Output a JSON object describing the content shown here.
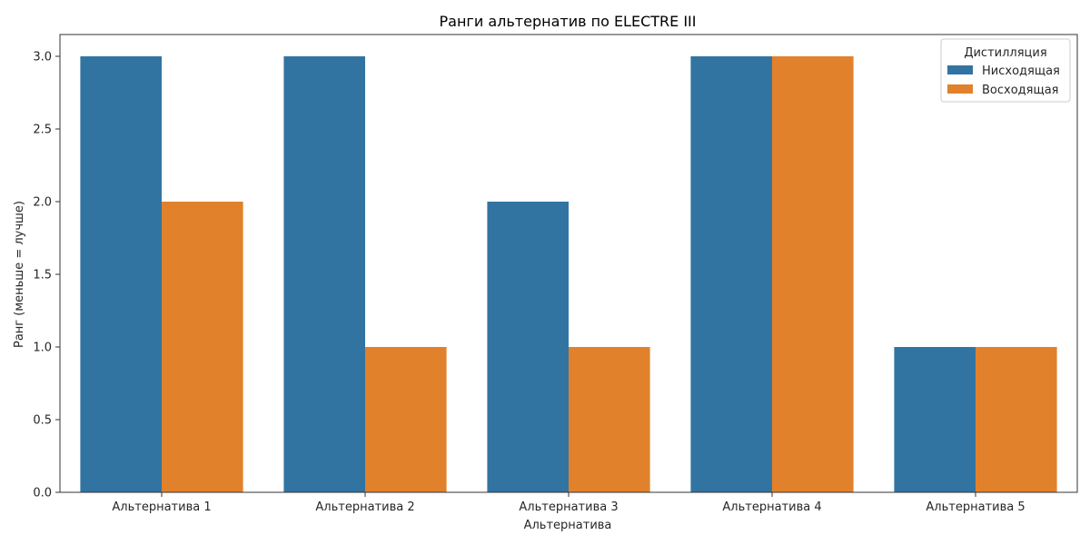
{
  "chart_data": {
    "type": "bar",
    "title": "Ранги альтернатив по ELECTRE III",
    "xlabel": "Альтернатива",
    "ylabel": "Ранг (меньше = лучше)",
    "categories": [
      "Альтернатива 1",
      "Альтернатива 2",
      "Альтернатива 3",
      "Альтернатива 4",
      "Альтернатива 5"
    ],
    "series": [
      {
        "name": "Нисходящая",
        "color": "#3274a1",
        "values": [
          3,
          3,
          2,
          3,
          1
        ]
      },
      {
        "name": "Восходящая",
        "color": "#e1812c",
        "values": [
          2,
          1,
          1,
          3,
          1
        ]
      }
    ],
    "ylim": [
      0,
      3.15
    ],
    "yticks": [
      "0.0",
      "0.5",
      "1.0",
      "1.5",
      "2.0",
      "2.5",
      "3.0"
    ],
    "grid": false,
    "legend": {
      "title": "Дистилляция",
      "position": "top-right"
    }
  }
}
